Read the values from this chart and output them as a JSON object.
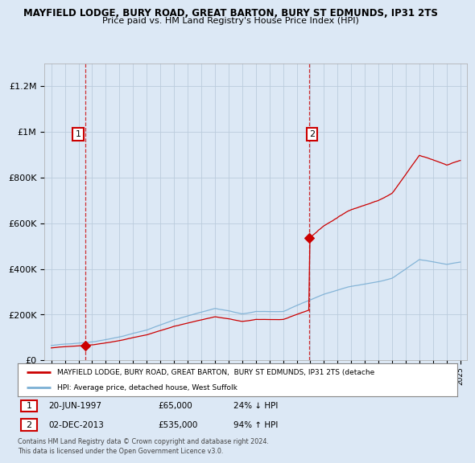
{
  "title1": "MAYFIELD LODGE, BURY ROAD, GREAT BARTON, BURY ST EDMUNDS, IP31 2TS",
  "title2": "Price paid vs. HM Land Registry's House Price Index (HPI)",
  "red_label": "MAYFIELD LODGE, BURY ROAD, GREAT BARTON,  BURY ST EDMUNDS, IP31 2TS (detache",
  "blue_label": "HPI: Average price, detached house, West Suffolk",
  "sale1_year": 1997.47,
  "sale1_price": 65000,
  "sale1_label": "1",
  "sale2_year": 2013.92,
  "sale2_price": 535000,
  "sale2_label": "2",
  "footer": "Contains HM Land Registry data © Crown copyright and database right 2024.\nThis data is licensed under the Open Government Licence v3.0.",
  "ylim": [
    0,
    1300000
  ],
  "xlim": [
    1994.5,
    2025.5
  ],
  "red_color": "#cc0000",
  "blue_color": "#7bafd4",
  "background_color": "#dce8f5",
  "plot_bg_color": "#dce8f5",
  "grid_color": "#bbccdd",
  "legend_bg": "#ffffff"
}
